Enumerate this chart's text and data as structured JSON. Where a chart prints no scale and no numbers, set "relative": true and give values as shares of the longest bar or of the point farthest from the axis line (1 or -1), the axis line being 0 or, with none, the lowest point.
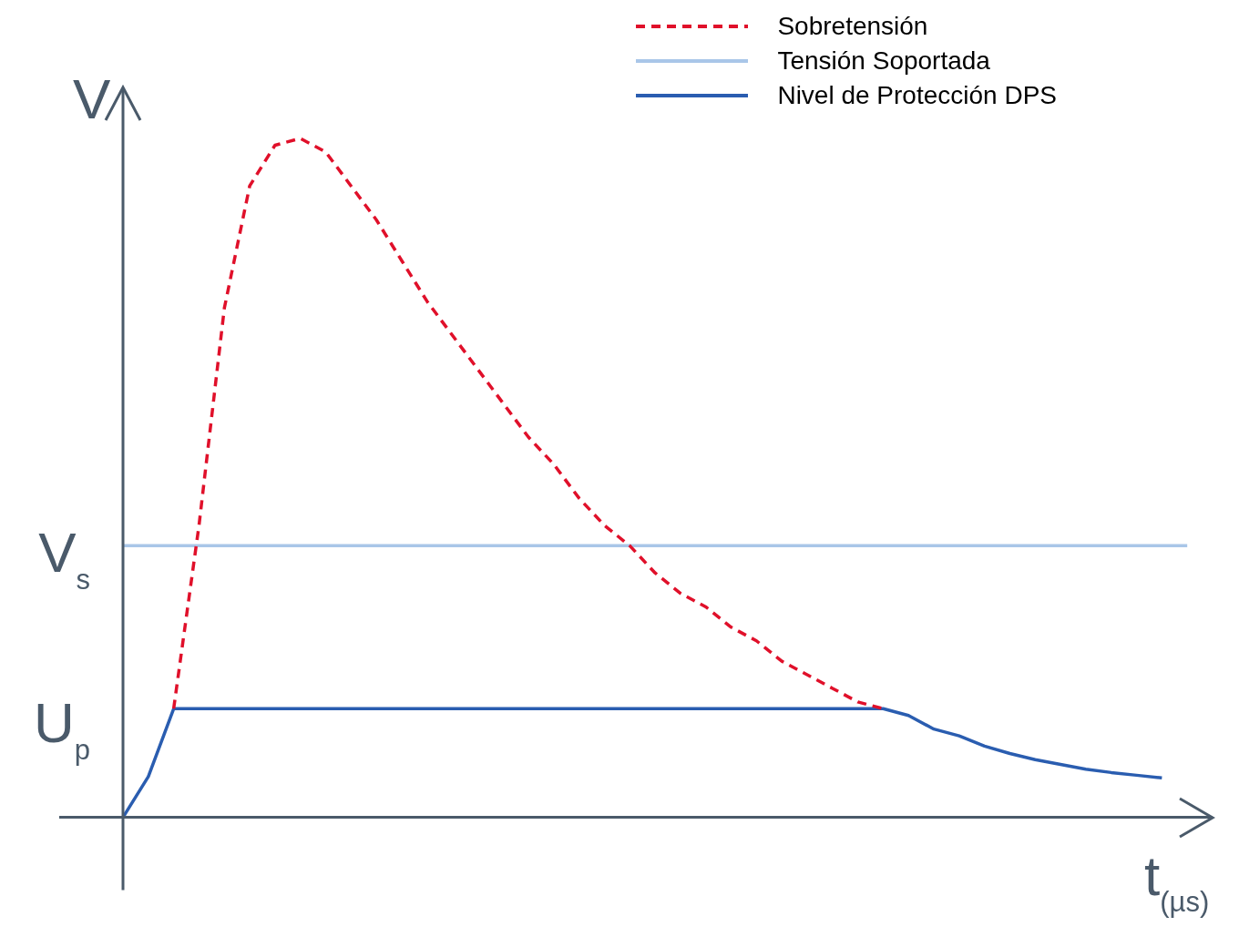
{
  "chart_data": {
    "type": "line",
    "relative": true,
    "ylabel": "V",
    "xlabel": "t$_{(µs)}$",
    "legend": "top right",
    "marker": "none",
    "grid": false,
    "categories": [
      null,
      null,
      null,
      null,
      null,
      null,
      null,
      null,
      null,
      null,
      null,
      null,
      null,
      null,
      null,
      null,
      null,
      null,
      null,
      null,
      null,
      null,
      null,
      null,
      null,
      null,
      null,
      null,
      null,
      null,
      null,
      null,
      null,
      null,
      null,
      null,
      null,
      null,
      null,
      null,
      null,
      null,
      null,
      null
    ],
    "annotations": [
      "V$_{s}$",
      "U$_{p}$"
    ],
    "series": [
      {
        "name": "Sobretensión",
        "color": "#e0102a",
        "line_style": "dashed",
        "values": [
          null,
          null,
          0.16,
          0.43,
          0.75,
          0.93,
          0.99,
          1.0,
          0.98,
          0.93,
          0.88,
          0.82,
          0.76,
          0.71,
          0.66,
          0.61,
          0.56,
          0.52,
          0.47,
          0.43,
          0.4,
          0.36,
          0.33,
          0.31,
          0.28,
          0.26,
          0.23,
          0.21,
          0.19,
          0.17,
          0.16,
          null,
          null,
          null,
          null,
          null,
          null,
          null,
          null,
          null,
          null,
          null,
          null,
          null
        ]
      },
      {
        "name": "Tensión Soportada",
        "color": "#a9c6e8",
        "line_style": "solid",
        "values": [
          0.4,
          0.4,
          0.4,
          0.4,
          0.4,
          0.4,
          0.4,
          0.4,
          0.4,
          0.4,
          0.4,
          0.4,
          0.4,
          0.4,
          0.4,
          0.4,
          0.4,
          0.4,
          0.4,
          0.4,
          0.4,
          0.4,
          0.4,
          0.4,
          0.4,
          0.4,
          0.4,
          0.4,
          0.4,
          0.4,
          0.4,
          0.4,
          0.4,
          0.4,
          0.4,
          0.4,
          0.4,
          0.4,
          0.4,
          0.4,
          0.4,
          0.4,
          0.4,
          null
        ]
      },
      {
        "name": "Nivel de Protección DPS",
        "color": "#2a5db0",
        "line_style": "solid",
        "values": [
          0,
          0.06,
          0.16,
          0.16,
          0.16,
          0.16,
          0.16,
          0.16,
          0.16,
          0.16,
          0.16,
          0.16,
          0.16,
          0.16,
          0.16,
          0.16,
          0.16,
          0.16,
          0.16,
          0.16,
          0.16,
          0.16,
          0.16,
          0.16,
          0.16,
          0.16,
          0.16,
          0.16,
          0.16,
          0.16,
          0.16,
          0.15,
          0.13,
          0.12,
          0.105,
          0.094,
          0.085,
          0.078,
          0.071,
          0.066,
          0.062,
          0.058,
          null,
          null
        ]
      }
    ]
  }
}
